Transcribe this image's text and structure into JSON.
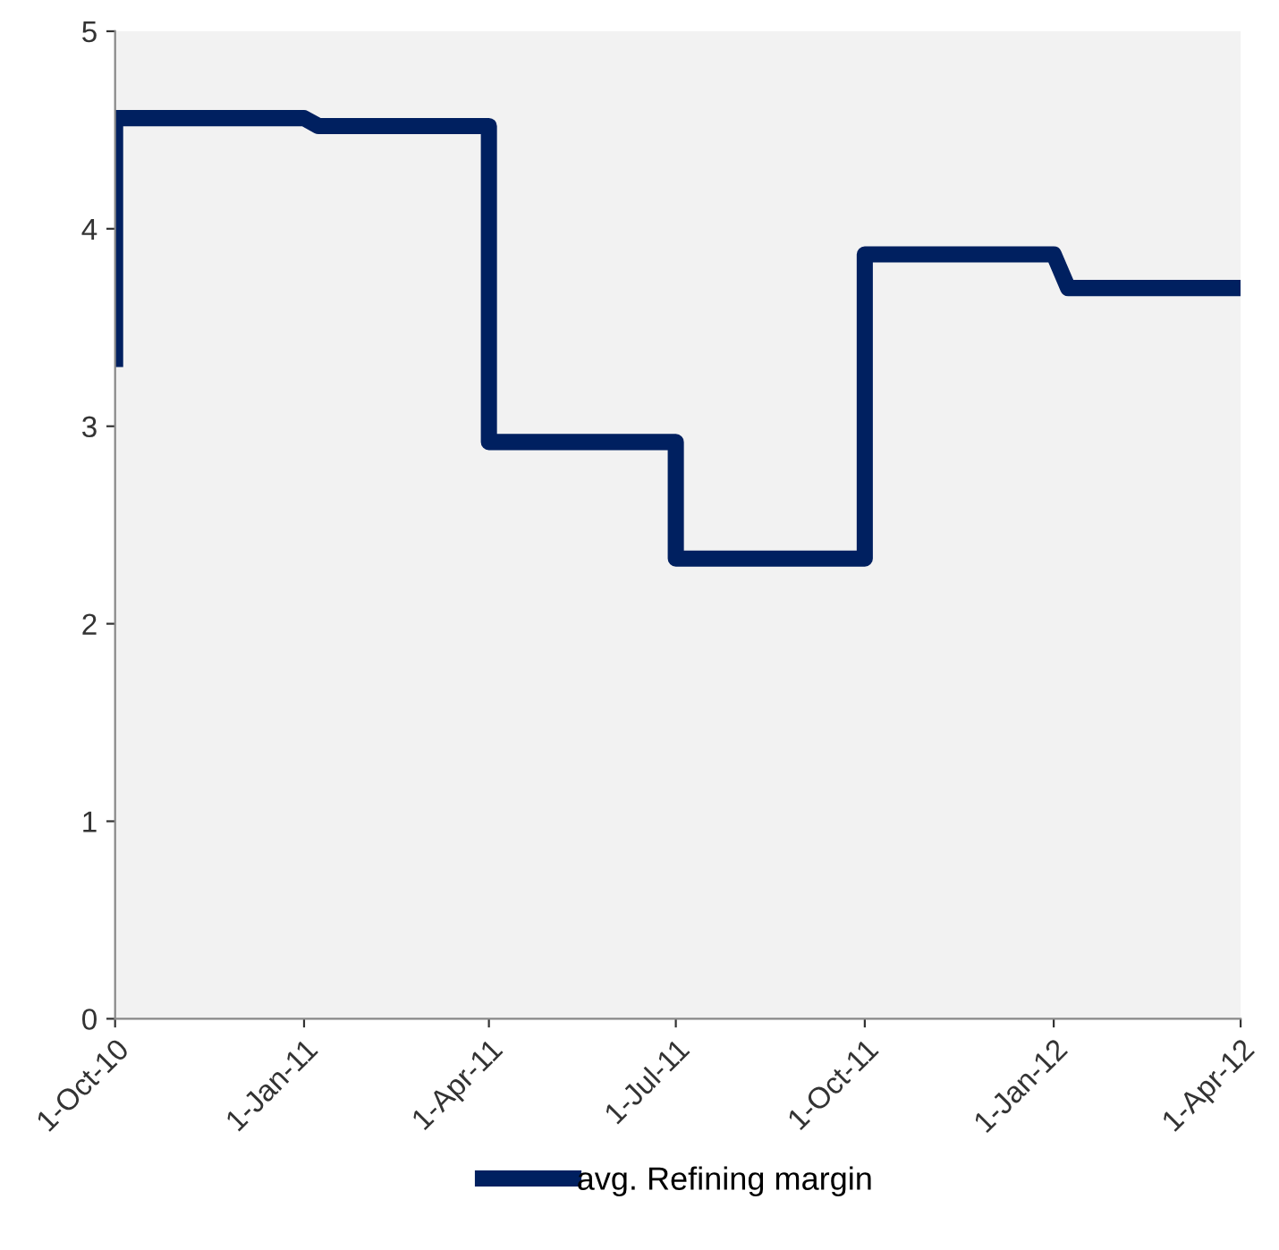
{
  "chart_data": {
    "type": "line",
    "legend": "bottom",
    "line_style": "solid",
    "x": [
      "2010-10-01",
      "2010-10-01",
      "2011-01-01",
      "2011-01-08",
      "2011-04-01",
      "2011-04-01",
      "2011-07-01",
      "2011-07-01",
      "2011-10-01",
      "2011-10-01",
      "2012-01-01",
      "2012-01-08",
      "2012-04-01"
    ],
    "series": [
      {
        "name": "avg. Refining margin",
        "color": "#002060",
        "values": [
          3.3,
          4.56,
          4.56,
          4.52,
          4.52,
          2.92,
          2.92,
          2.33,
          2.33,
          3.87,
          3.87,
          3.7,
          3.7
        ]
      }
    ],
    "xlim": [
      "2010-10-01",
      "2012-04-01"
    ],
    "xticks": [
      {
        "value": "2010-10-01",
        "label": "1-Oct-10"
      },
      {
        "value": "2011-01-01",
        "label": "1-Jan-11"
      },
      {
        "value": "2011-04-01",
        "label": "1-Apr-11"
      },
      {
        "value": "2011-07-01",
        "label": "1-Jul-11"
      },
      {
        "value": "2011-10-01",
        "label": "1-Oct-11"
      },
      {
        "value": "2012-01-01",
        "label": "1-Jan-12"
      },
      {
        "value": "2012-04-01",
        "label": "1-Apr-12"
      }
    ],
    "ylim": [
      0,
      5
    ],
    "yticks": [
      0,
      1,
      2,
      3,
      4,
      5
    ]
  }
}
